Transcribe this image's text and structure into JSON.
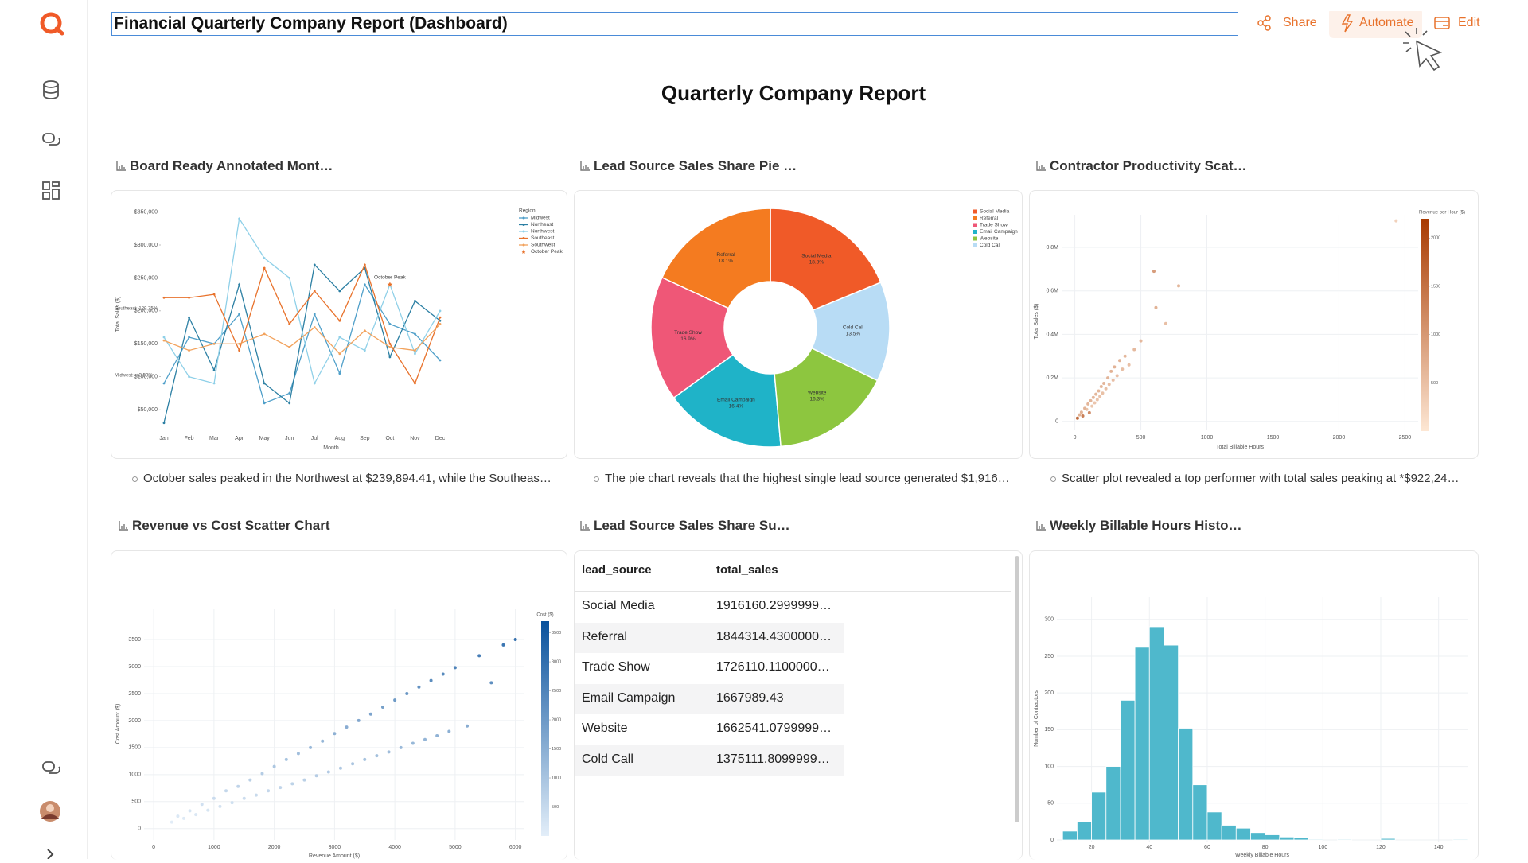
{
  "header": {
    "title": "Financial Quarterly Company Report (Dashboard)",
    "actions": [
      "Share",
      "Automate",
      "Edit"
    ]
  },
  "report_title": "Quarterly Company Report",
  "widgets": [
    {
      "title": "Board Ready Annotated Mont…",
      "summary": "October sales peaked in the Northwest at $239,894.41, while the Southeas…"
    },
    {
      "title": "Lead Source Sales Share Pie …",
      "summary": "The pie chart reveals that the highest single lead source generated $1,916…"
    },
    {
      "title": "Contractor Productivity Scat…",
      "summary": "Scatter plot revealed a top performer with total sales peaking at *$922,24…"
    },
    {
      "title": "Revenue vs Cost Scatter Chart"
    },
    {
      "title": "Lead Source Sales Share Su…"
    },
    {
      "title": "Weekly Billable Hours Histo…"
    }
  ],
  "table": {
    "columns": [
      "lead_source",
      "total_sales"
    ],
    "rows": [
      [
        "Social Media",
        "1916160.2999999…"
      ],
      [
        "Referral",
        "1844314.4300000…"
      ],
      [
        "Trade Show",
        "1726110.1100000…"
      ],
      [
        "Email Campaign",
        "1667989.43"
      ],
      [
        "Website",
        "1662541.0799999…"
      ],
      [
        "Cold Call",
        "1375111.8099999…"
      ]
    ]
  },
  "chart_data": [
    {
      "type": "line",
      "categories": [
        "Jan",
        "Feb",
        "Mar",
        "Apr",
        "May",
        "Jun",
        "Jul",
        "Aug",
        "Sep",
        "Oct",
        "Nov",
        "Dec"
      ],
      "ylim": [
        20000,
        370000
      ],
      "yticks": [
        {
          "value": 50000,
          "label": "$50,000"
        },
        {
          "value": 100000,
          "label": "$100,000"
        },
        {
          "value": 150000,
          "label": "$150,000"
        },
        {
          "value": 200000,
          "label": "$200,000"
        },
        {
          "value": 250000,
          "label": "$250,000"
        },
        {
          "value": 300000,
          "label": "$300,000"
        },
        {
          "value": 350000,
          "label": "$350,000"
        }
      ],
      "grid": false,
      "xlabel": "Month",
      "ylabel": "Total Sales ($)",
      "legend_title": "Region",
      "annotation": "October Peak",
      "side_notes": [
        "Southeast: 120.75%",
        "Midwest: -43.59%"
      ],
      "series": [
        {
          "name": "Midwest",
          "color": "#4f9fc9",
          "values": [
            90000,
            160000,
            150000,
            195000,
            60000,
            75000,
            195000,
            105000,
            240000,
            180000,
            165000,
            125000
          ]
        },
        {
          "name": "Northeast",
          "color": "#2b7fa3",
          "values": [
            30000,
            190000,
            110000,
            240000,
            90000,
            60000,
            270000,
            230000,
            265000,
            130000,
            215000,
            185000
          ]
        },
        {
          "name": "Northwest",
          "color": "#8fd0e8",
          "values": [
            160000,
            100000,
            90000,
            340000,
            280000,
            250000,
            90000,
            160000,
            140000,
            239894.41,
            135000,
            200000
          ]
        },
        {
          "name": "Southeast",
          "color": "#e8722c",
          "values": [
            220000,
            220000,
            225000,
            140000,
            265000,
            180000,
            230000,
            185000,
            270000,
            150000,
            90000,
            190000
          ]
        },
        {
          "name": "Southwest",
          "color": "#f2a25c",
          "values": [
            155000,
            140000,
            150000,
            150000,
            165000,
            145000,
            175000,
            135000,
            170000,
            145000,
            140000,
            180000
          ]
        }
      ]
    },
    {
      "type": "pie",
      "categories": [
        "Social Media",
        "Referral",
        "Trade Show",
        "Email Campaign",
        "Website",
        "Cold Call"
      ],
      "values": [
        18.8,
        18.1,
        16.9,
        16.4,
        16.3,
        13.5
      ],
      "value_labels": [
        "18.8%",
        "18.1%",
        "16.9%",
        "16.4%",
        "16.3%",
        "13.5%"
      ],
      "colors": [
        "#f05a28",
        "#f47b20",
        "#ef5777",
        "#1fb3c8",
        "#8dc63f",
        "#b8dcf5"
      ]
    },
    {
      "type": "scatter",
      "xlabel": "Total Billable Hours",
      "ylabel": "Total Sales ($)",
      "colorbar_title": "Revenue per Hour ($)",
      "xlim": [
        -100,
        2600
      ],
      "xticks": [
        0,
        500,
        1000,
        1500,
        2000,
        2500
      ],
      "ylim": [
        -30000,
        950000
      ],
      "yticks": [
        0,
        {
          "value": 200000,
          "label": "0.2M"
        },
        {
          "value": 400000,
          "label": "0.4M"
        },
        {
          "value": 600000,
          "label": "0.6M"
        },
        {
          "value": 800000,
          "label": "0.8M"
        }
      ],
      "clim": [
        0,
        2200
      ],
      "cticks": [
        500,
        1000,
        1500,
        2000
      ],
      "grid": true,
      "x": [
        20,
        35,
        50,
        60,
        75,
        90,
        100,
        110,
        120,
        130,
        140,
        150,
        160,
        170,
        180,
        190,
        200,
        210,
        220,
        235,
        250,
        260,
        275,
        290,
        300,
        320,
        340,
        360,
        380,
        410,
        450,
        500,
        599,
        614,
        689,
        786,
        2433
      ],
      "y": [
        15000,
        30000,
        42000,
        25000,
        60000,
        55000,
        80000,
        40000,
        95000,
        70000,
        110000,
        85000,
        125000,
        100000,
        140000,
        115000,
        160000,
        130000,
        175000,
        150000,
        200000,
        170000,
        230000,
        190000,
        250000,
        210000,
        280000,
        240000,
        300000,
        260000,
        330000,
        370000,
        690000,
        523000,
        450000,
        623000,
        922240
      ],
      "colors": [
        1900,
        857,
        840,
        1600,
        800,
        611,
        800,
        1400,
        792,
        538,
        786,
        567,
        781,
        588,
        778,
        605,
        800,
        619,
        795,
        638,
        800,
        654,
        836,
        655,
        833,
        656,
        824,
        667,
        789,
        634,
        733,
        740,
        1152,
        852,
        653,
        793,
        379
      ]
    },
    {
      "type": "scatter",
      "xlabel": "Revenue Amount ($)",
      "ylabel": "Cost Amount ($)",
      "colorbar_title": "Cost ($)",
      "xlim": [
        -160,
        6150
      ],
      "xticks": [
        0,
        1000,
        2000,
        3000,
        4000,
        5000,
        6000
      ],
      "ylim": [
        -180,
        4060
      ],
      "yticks": [
        0,
        500,
        1000,
        1500,
        2000,
        2500,
        3000,
        3500
      ],
      "clim": [
        0,
        3700
      ],
      "cticks": [
        500,
        1000,
        1500,
        2000,
        2500,
        3000,
        3500
      ],
      "grid": true,
      "x": [
        300,
        400,
        500,
        600,
        700,
        800,
        900,
        1000,
        1100,
        1200,
        1300,
        1400,
        1500,
        1600,
        1700,
        1800,
        1900,
        2000,
        2100,
        2200,
        2300,
        2400,
        2500,
        2600,
        2700,
        2800,
        2900,
        3000,
        3100,
        3200,
        3300,
        3400,
        3500,
        3600,
        3700,
        3800,
        3900,
        4000,
        4100,
        4200,
        4300,
        4400,
        4500,
        4600,
        4700,
        4800,
        4900,
        5000,
        5200,
        5400,
        5600,
        5800,
        6000
      ],
      "y": [
        120,
        230,
        190,
        330,
        260,
        450,
        340,
        560,
        410,
        700,
        480,
        780,
        560,
        900,
        620,
        1020,
        700,
        1150,
        760,
        1280,
        830,
        1390,
        900,
        1500,
        980,
        1620,
        1050,
        1760,
        1120,
        1880,
        1200,
        2000,
        1280,
        2120,
        1350,
        2250,
        1420,
        2380,
        1500,
        2500,
        1580,
        2620,
        1650,
        2740,
        1720,
        2860,
        1800,
        2980,
        1900,
        3200,
        2700,
        3400,
        3500
      ]
    },
    {
      "type": "histogram",
      "xlabel": "Weekly Billable Hours",
      "ylabel": "Number of Contractors",
      "color": "#4fb8cc",
      "bins": [
        10,
        15,
        20,
        25,
        30,
        35,
        40,
        45,
        50,
        55,
        60,
        65,
        70,
        75,
        80,
        85,
        90,
        95,
        100,
        105,
        110,
        115,
        120,
        125,
        130,
        135,
        140,
        145,
        150
      ],
      "counts": [
        12,
        25,
        65,
        100,
        190,
        262,
        290,
        265,
        152,
        75,
        38,
        20,
        16,
        10,
        7,
        4,
        3,
        1,
        0,
        1,
        0,
        0,
        2,
        0,
        0,
        0,
        0,
        1
      ],
      "xlim": [
        8,
        150
      ],
      "xticks": [
        20,
        40,
        60,
        80,
        100,
        120,
        140
      ],
      "ylim": [
        0,
        330
      ],
      "yticks": [
        0,
        50,
        100,
        150,
        200,
        250,
        300
      ],
      "grid": true
    }
  ]
}
